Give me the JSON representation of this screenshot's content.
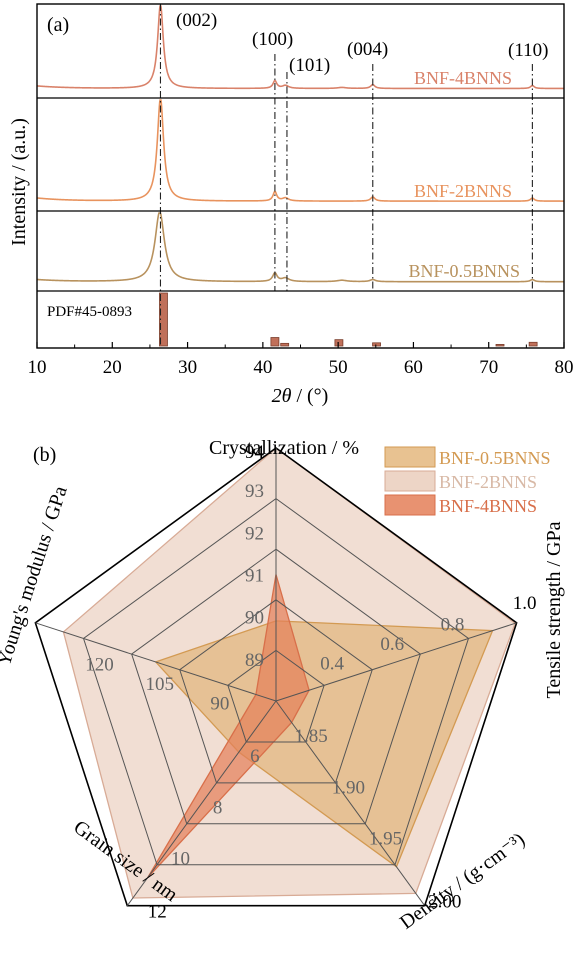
{
  "panel_a_label": "(a)",
  "panel_b_label": "(b)",
  "chart_data": [
    {
      "type": "line",
      "xlabel_var": "2θ",
      "xlabel_unit": " / (°)",
      "ylabel": "Intensity / (a.u.)",
      "xlim": [
        10,
        80
      ],
      "xticks": [
        10,
        20,
        30,
        40,
        50,
        60,
        70,
        80
      ],
      "series": [
        {
          "name": "BNF-4BNNS",
          "color": "#d9826a",
          "peaks": [
            {
              "x": 26.4,
              "h": 1.0,
              "w": 0.45
            },
            {
              "x": 41.6,
              "h": 0.09,
              "w": 0.3
            },
            {
              "x": 43.0,
              "h": 0.035,
              "w": 0.5
            },
            {
              "x": 50.5,
              "h": 0.012,
              "w": 0.7
            },
            {
              "x": 54.6,
              "h": 0.045,
              "w": 0.35
            },
            {
              "x": 75.8,
              "h": 0.035,
              "w": 0.3
            }
          ]
        },
        {
          "name": "BNF-2BNNS",
          "color": "#e8935e",
          "peaks": [
            {
              "x": 26.4,
              "h": 1.0,
              "w": 0.5
            },
            {
              "x": 41.6,
              "h": 0.09,
              "w": 0.3
            },
            {
              "x": 43.0,
              "h": 0.03,
              "w": 0.5
            },
            {
              "x": 54.6,
              "h": 0.04,
              "w": 0.35
            },
            {
              "x": 75.8,
              "h": 0.03,
              "w": 0.3
            }
          ]
        },
        {
          "name": "BNF-0.5BNNS",
          "color": "#b8925e",
          "peaks": [
            {
              "x": 26.3,
              "h": 1.0,
              "w": 0.75
            },
            {
              "x": 41.6,
              "h": 0.12,
              "w": 0.35
            },
            {
              "x": 43.0,
              "h": 0.05,
              "w": 0.6
            },
            {
              "x": 50.5,
              "h": 0.02,
              "w": 0.8
            },
            {
              "x": 54.6,
              "h": 0.03,
              "w": 0.45
            },
            {
              "x": 75.8,
              "h": 0.03,
              "w": 0.35
            }
          ]
        }
      ],
      "reference": {
        "name": "PDF#45-0893",
        "color": "#c0705a",
        "bars": [
          {
            "x": 26.8,
            "h": 1.0
          },
          {
            "x": 41.6,
            "h": 0.16
          },
          {
            "x": 42.9,
            "h": 0.05
          },
          {
            "x": 50.1,
            "h": 0.12
          },
          {
            "x": 55.1,
            "h": 0.06
          },
          {
            "x": 71.5,
            "h": 0.03
          },
          {
            "x": 75.9,
            "h": 0.07
          }
        ]
      },
      "peak_labels": [
        {
          "text": "(002)",
          "x": 26.4
        },
        {
          "text": "(100)",
          "x": 41.6
        },
        {
          "text": "(101)",
          "x": 43.2
        },
        {
          "text": "(004)",
          "x": 54.6
        },
        {
          "text": "(110)",
          "x": 75.8
        }
      ]
    },
    {
      "type": "radar",
      "axes": [
        {
          "label": "Crystallization / %",
          "min": 88,
          "max": 94,
          "ticks": [
            89,
            90,
            91,
            92,
            93,
            94
          ]
        },
        {
          "label": "Tensile strength / GPa",
          "min": 0.2,
          "max": 1.0,
          "ticks": [
            0.4,
            0.6,
            0.8,
            1.0
          ]
        },
        {
          "label": "Density / (g·cm⁻³)",
          "min": 1.8,
          "max": 2.0,
          "ticks": [
            1.85,
            1.9,
            1.95,
            2.0
          ]
        },
        {
          "label": "Grain size / nm",
          "min": 4,
          "max": 12,
          "ticks": [
            6,
            8,
            10,
            12
          ]
        },
        {
          "label": "Young's modulus / GPa",
          "min": 75,
          "max": 135,
          "ticks": [
            90,
            105,
            120
          ]
        }
      ],
      "series": [
        {
          "name": "BNF-0.5BNNS",
          "values": [
            89.9,
            0.92,
            1.962,
            6.0,
            105.0
          ],
          "fill": "#e0ad6c",
          "stroke": "#d39a52",
          "opacity": 0.6
        },
        {
          "name": "BNF-2BNNS",
          "values": [
            94.0,
            0.995,
            1.988,
            11.7,
            128.0
          ],
          "fill": "#e6c3ae",
          "stroke": "#d8ab96",
          "opacity": 0.55
        },
        {
          "name": "BNF-4BNNS",
          "values": [
            91.0,
            0.31,
            1.821,
            10.9,
            80.0
          ],
          "fill": "#e47f58",
          "stroke": "#d86f4a",
          "opacity": 0.7
        }
      ],
      "legend_placement": "top-right"
    }
  ]
}
